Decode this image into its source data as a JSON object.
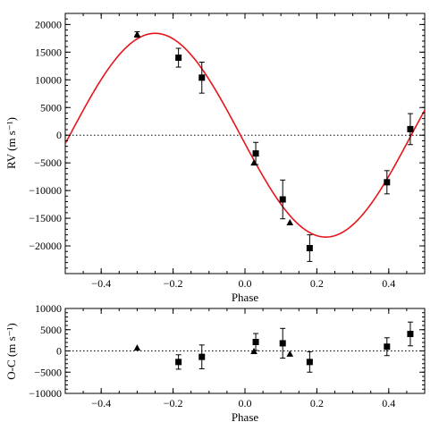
{
  "chart_data": [
    {
      "type": "scatter",
      "panel": "radial-velocity",
      "xlabel": "Phase",
      "ylabel": "RV (m s⁻¹)",
      "xlim": [
        -0.5,
        0.5
      ],
      "ylim": [
        -25000,
        22000
      ],
      "xticks": [
        -0.4,
        -0.2,
        0.0,
        0.2,
        0.4
      ],
      "xtick_labels": [
        "−0.4",
        "−0.2",
        "0.0",
        "0.2",
        "0.4"
      ],
      "yticks": [
        20000,
        15000,
        10000,
        5000,
        0,
        -5000,
        -10000,
        -15000,
        -20000
      ],
      "ytick_labels": [
        "20000",
        "15000",
        "10000",
        "5000",
        "0",
        "−5000",
        "−10000",
        "−15000",
        "−20000"
      ],
      "zero_line": "dotted",
      "model_curve": {
        "color": "#e8141b",
        "shape": "sinusoid",
        "offset": 0,
        "amplitude": 18400,
        "peak_phase": -0.25,
        "period_in_phase": 0.95
      },
      "series": [
        {
          "marker": "square",
          "x": [
            -0.185,
            -0.12,
            0.03,
            0.105,
            0.18,
            0.395,
            0.46
          ],
          "y": [
            14000,
            10400,
            -3300,
            -11600,
            -20400,
            -8500,
            1100
          ],
          "yerr": [
            1700,
            2800,
            2000,
            3500,
            2400,
            2100,
            2800
          ]
        },
        {
          "marker": "triangle",
          "x": [
            -0.3,
            0.025,
            0.125
          ],
          "y": [
            18200,
            -5000,
            -15800
          ],
          "yerr": [
            500,
            0,
            0
          ]
        }
      ]
    },
    {
      "type": "scatter",
      "panel": "residuals",
      "xlabel": "Phase",
      "ylabel": "O-C (m s⁻¹)",
      "xlim": [
        -0.5,
        0.5
      ],
      "ylim": [
        -10000,
        10000
      ],
      "xticks": [
        -0.4,
        -0.2,
        0.0,
        0.2,
        0.4
      ],
      "xtick_labels": [
        "−0.4",
        "−0.2",
        "0.0",
        "0.2",
        "0.4"
      ],
      "yticks": [
        10000,
        5000,
        0,
        -5000,
        -10000
      ],
      "ytick_labels": [
        "10000",
        "5000",
        "0",
        "−5000",
        "−10000"
      ],
      "zero_line": "dotted",
      "series": [
        {
          "marker": "square",
          "x": [
            -0.185,
            -0.12,
            0.03,
            0.105,
            0.18,
            0.395,
            0.46
          ],
          "y": [
            -2600,
            -1400,
            2100,
            1800,
            -2600,
            1000,
            4000
          ],
          "yerr": [
            1700,
            2800,
            2000,
            3500,
            2400,
            2100,
            2800
          ]
        },
        {
          "marker": "triangle",
          "x": [
            -0.3,
            0.025,
            0.125
          ],
          "y": [
            700,
            -100,
            -700
          ],
          "yerr": [
            0,
            0,
            0
          ]
        }
      ]
    }
  ]
}
